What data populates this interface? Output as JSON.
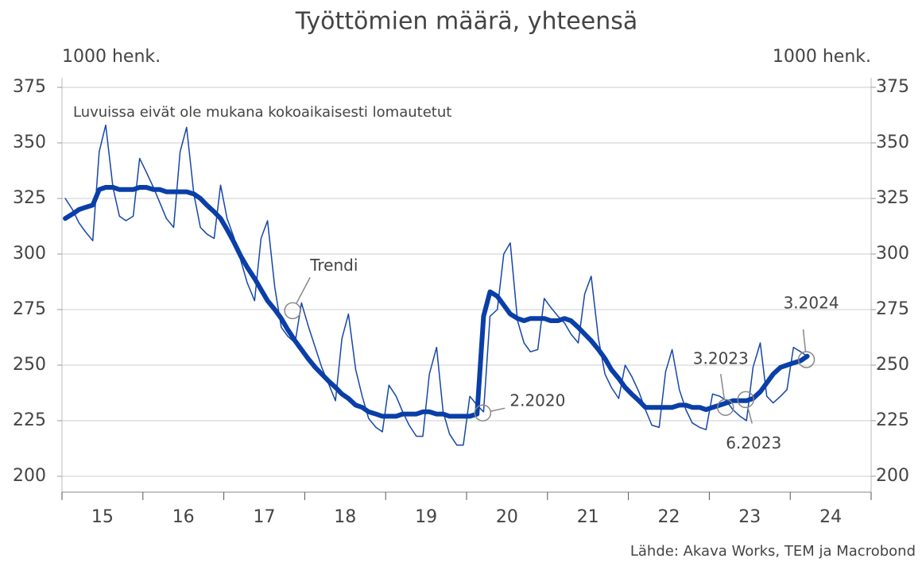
{
  "chart_data": {
    "type": "line",
    "title": "Työttömien määrä, yhteensä",
    "y_label": "1000 henk.",
    "y2_label": "1000 henk.",
    "note": "Luvuissa eivät ole mukana kokoaikaisesti lomautetut",
    "source": "Lähde: Akava Works, TEM ja Macrobond",
    "xlim": [
      2015,
      2025
    ],
    "xticks": [
      {
        "value": 2015.5,
        "label": "15"
      },
      {
        "value": 2016.5,
        "label": "16"
      },
      {
        "value": 2017.5,
        "label": "17"
      },
      {
        "value": 2018.5,
        "label": "18"
      },
      {
        "value": 2019.5,
        "label": "19"
      },
      {
        "value": 2020.5,
        "label": "20"
      },
      {
        "value": 2021.5,
        "label": "21"
      },
      {
        "value": 2022.5,
        "label": "22"
      },
      {
        "value": 2023.5,
        "label": "23"
      },
      {
        "value": 2024.5,
        "label": "24"
      }
    ],
    "xtick_marks": [
      2015,
      2016,
      2017,
      2018,
      2019,
      2020,
      2021,
      2022,
      2023,
      2024,
      2025
    ],
    "ylim": [
      200,
      375
    ],
    "yticks": [
      200,
      225,
      250,
      275,
      300,
      325,
      350,
      375
    ],
    "y2lim": [
      200,
      375
    ],
    "y2ticks": [
      200,
      225,
      250,
      275,
      300,
      325,
      350,
      375
    ],
    "grid": true,
    "x": [
      2015.04,
      2015.13,
      2015.21,
      2015.29,
      2015.38,
      2015.46,
      2015.54,
      2015.63,
      2015.71,
      2015.79,
      2015.88,
      2015.96,
      2016.04,
      2016.13,
      2016.21,
      2016.29,
      2016.38,
      2016.46,
      2016.54,
      2016.63,
      2016.71,
      2016.79,
      2016.88,
      2016.96,
      2017.04,
      2017.13,
      2017.21,
      2017.29,
      2017.38,
      2017.46,
      2017.54,
      2017.63,
      2017.71,
      2017.79,
      2017.88,
      2017.96,
      2018.04,
      2018.13,
      2018.21,
      2018.29,
      2018.38,
      2018.46,
      2018.54,
      2018.63,
      2018.71,
      2018.79,
      2018.88,
      2018.96,
      2019.04,
      2019.13,
      2019.21,
      2019.29,
      2019.38,
      2019.46,
      2019.54,
      2019.63,
      2019.71,
      2019.79,
      2019.88,
      2019.96,
      2020.04,
      2020.13,
      2020.21,
      2020.29,
      2020.38,
      2020.46,
      2020.54,
      2020.63,
      2020.71,
      2020.79,
      2020.88,
      2020.96,
      2021.04,
      2021.13,
      2021.21,
      2021.29,
      2021.38,
      2021.46,
      2021.54,
      2021.63,
      2021.71,
      2021.79,
      2021.88,
      2021.96,
      2022.04,
      2022.13,
      2022.21,
      2022.29,
      2022.38,
      2022.46,
      2022.54,
      2022.63,
      2022.71,
      2022.79,
      2022.88,
      2022.96,
      2023.04,
      2023.13,
      2023.21,
      2023.29,
      2023.38,
      2023.46,
      2023.54,
      2023.63,
      2023.71,
      2023.79,
      2023.88,
      2023.96,
      2024.04,
      2024.13,
      2024.21
    ],
    "series": [
      {
        "color": "#1646a8",
        "width": 1.5,
        "values": [
          325,
          320,
          314,
          310,
          306,
          346,
          358,
          330,
          317,
          315,
          317,
          343,
          337,
          330,
          323,
          316,
          312,
          346,
          357,
          327,
          312,
          309,
          307,
          331,
          316,
          307,
          297,
          287,
          279,
          307,
          315,
          285,
          267,
          263,
          260,
          278,
          268,
          258,
          249,
          242,
          234,
          262,
          273,
          248,
          236,
          226,
          222,
          220,
          241,
          236,
          229,
          223,
          218,
          218,
          246,
          258,
          229,
          219,
          214,
          214,
          236,
          232,
          229,
          272,
          275,
          300,
          305,
          270,
          260,
          256,
          257,
          280,
          276,
          272,
          269,
          264,
          260,
          282,
          290,
          262,
          246,
          240,
          235,
          250,
          245,
          238,
          230,
          223,
          222,
          247,
          257,
          239,
          230,
          224,
          222,
          221,
          237,
          236,
          234,
          230,
          227,
          225,
          249,
          260,
          236,
          233,
          236,
          239,
          258,
          256,
          254
        ]
      },
      {
        "color": "#0a3fa8",
        "width": 6,
        "values": [
          316,
          318,
          320,
          321,
          322,
          329,
          330,
          330,
          329,
          329,
          329,
          330,
          330,
          329,
          329,
          328,
          328,
          328,
          328,
          327,
          325,
          322,
          319,
          316,
          311,
          305,
          299,
          294,
          289,
          284,
          279,
          275,
          271,
          266,
          261,
          257,
          253,
          249,
          246,
          243,
          240,
          237,
          235,
          232,
          231,
          229,
          228,
          227,
          227,
          227,
          228,
          228,
          228,
          229,
          229,
          228,
          228,
          227,
          227,
          227,
          227,
          228,
          272,
          283,
          281,
          277,
          273,
          271,
          270,
          271,
          271,
          271,
          270,
          270,
          271,
          270,
          267,
          264,
          261,
          257,
          253,
          248,
          244,
          240,
          237,
          234,
          231,
          231,
          231,
          231,
          231,
          232,
          232,
          231,
          231,
          230,
          231,
          232,
          233,
          234,
          234,
          234,
          235,
          238,
          242,
          246,
          249,
          250,
          251,
          252,
          254
        ]
      }
    ],
    "annotations": [
      {
        "text": "Trendi",
        "x": 2017.85,
        "y": 274.5
      },
      {
        "text": "2.2020",
        "x": 2020.2,
        "y": 228.5
      },
      {
        "text": "3.2023",
        "x": 2023.2,
        "y": 231
      },
      {
        "text": "6.2023",
        "x": 2023.45,
        "y": 234.5
      },
      {
        "text": "3.2024",
        "x": 2024.2,
        "y": 252.5
      }
    ]
  }
}
